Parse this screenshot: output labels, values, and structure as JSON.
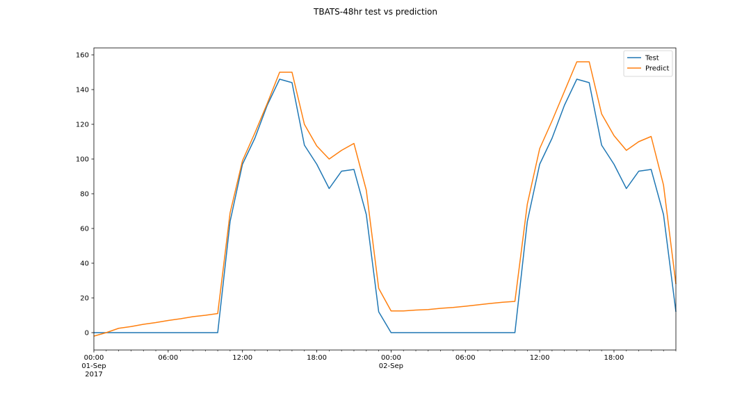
{
  "chart_data": {
    "type": "line",
    "title": "TBATS-48hr test vs prediction",
    "xlabel": "",
    "ylabel": "",
    "ylim": [
      -10,
      164
    ],
    "xlim": [
      0,
      47
    ],
    "x_start": "2017-09-01 00:00",
    "x_step": "1 hour",
    "x_ticks": [
      {
        "x": 0,
        "label": "00:00",
        "sublabel": "01-Sep",
        "sublabel2": "2017"
      },
      {
        "x": 6,
        "label": "06:00"
      },
      {
        "x": 12,
        "label": "12:00"
      },
      {
        "x": 18,
        "label": "18:00"
      },
      {
        "x": 24,
        "label": "00:00",
        "sublabel": "02-Sep"
      },
      {
        "x": 30,
        "label": "06:00"
      },
      {
        "x": 36,
        "label": "12:00"
      },
      {
        "x": 42,
        "label": "18:00"
      }
    ],
    "y_ticks": [
      0,
      20,
      40,
      60,
      80,
      100,
      120,
      140,
      160
    ],
    "legend_position": "top-right",
    "grid": false,
    "series": [
      {
        "name": "Test",
        "color": "#1f77b4",
        "values": [
          0,
          0,
          0,
          0,
          0,
          0,
          0,
          0,
          0,
          0,
          0,
          64,
          97,
          112,
          131,
          146,
          144,
          108,
          97,
          83,
          93,
          94,
          68,
          12,
          0,
          0,
          0,
          0,
          0,
          0,
          0,
          0,
          0,
          0,
          0,
          64,
          97,
          112,
          131,
          146,
          144,
          108,
          97,
          83,
          93,
          94,
          68,
          12
        ]
      },
      {
        "name": "Predict",
        "color": "#ff7f0e",
        "values": [
          -2,
          0,
          2.5,
          3.5,
          4.8,
          5.8,
          7,
          8,
          9.2,
          10,
          11,
          69,
          99,
          115,
          132,
          150,
          150,
          120,
          107.5,
          100,
          105,
          109,
          82,
          25.5,
          12.5,
          12.5,
          13,
          13.3,
          14,
          14.5,
          15.2,
          16,
          16.8,
          17.5,
          18,
          74,
          106,
          122,
          139,
          156,
          156,
          126,
          113.5,
          105,
          110,
          113,
          85,
          28
        ]
      }
    ]
  }
}
